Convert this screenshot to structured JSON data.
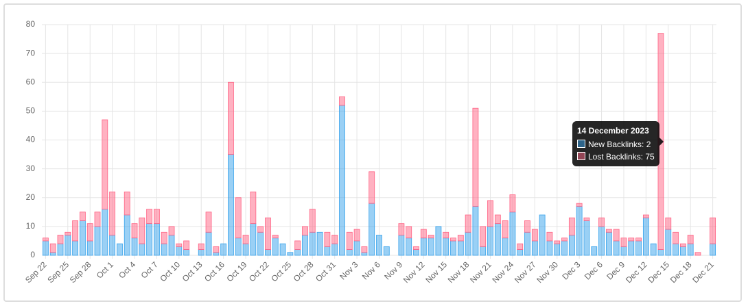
{
  "chart_data": {
    "type": "stacked-bar",
    "categories": [
      "Sep 22",
      null,
      null,
      "Sep 25",
      null,
      null,
      "Sep 28",
      null,
      null,
      "Oct 1",
      null,
      null,
      "Oct 4",
      null,
      null,
      "Oct 7",
      null,
      null,
      "Oct 10",
      null,
      null,
      "Oct 13",
      null,
      null,
      "Oct 16",
      null,
      null,
      "Oct 19",
      null,
      null,
      "Oct 22",
      null,
      null,
      "Oct 25",
      null,
      null,
      "Oct 28",
      null,
      null,
      "Oct 31",
      null,
      null,
      "Nov 3",
      null,
      null,
      "Nov 6",
      null,
      null,
      "Nov 9",
      null,
      null,
      "Nov 12",
      null,
      null,
      "Nov 15",
      null,
      null,
      "Nov 18",
      null,
      null,
      "Nov 21",
      null,
      null,
      "Nov 24",
      null,
      null,
      "Nov 27",
      null,
      null,
      "Nov 30",
      null,
      null,
      "Dec 3",
      null,
      null,
      "Dec 6",
      null,
      null,
      "Dec 9",
      null,
      null,
      "Dec 12",
      null,
      null,
      "Dec 15",
      null,
      null,
      "Dec 18",
      null,
      null,
      "Dec 21"
    ],
    "series": [
      {
        "name": "New Backlinks",
        "color": "#36a2eb",
        "values": [
          5,
          1,
          4,
          7,
          5,
          12,
          5,
          10,
          16,
          7,
          4,
          14,
          6,
          4,
          11,
          11,
          4,
          7,
          3,
          2,
          0,
          2,
          8,
          1,
          4,
          35,
          6,
          4,
          11,
          8,
          2,
          6,
          4,
          1,
          2,
          7,
          8,
          8,
          3,
          4,
          52,
          2,
          5,
          1,
          18,
          7,
          3,
          0,
          7,
          6,
          2,
          6,
          6,
          10,
          6,
          5,
          5,
          8,
          17,
          3,
          10,
          11,
          6,
          15,
          2,
          8,
          5,
          14,
          5,
          4,
          5,
          7,
          17,
          12,
          3,
          10,
          8,
          5,
          3,
          5,
          5,
          13,
          4,
          2,
          9,
          4,
          3,
          4,
          0,
          0,
          4
        ]
      },
      {
        "name": "Lost Backlinks",
        "color": "#ff6384",
        "values": [
          1,
          3,
          3,
          1,
          7,
          3,
          6,
          5,
          31,
          15,
          0,
          8,
          5,
          9,
          5,
          5,
          4,
          3,
          1,
          3,
          0,
          2,
          7,
          2,
          0,
          25,
          14,
          3,
          11,
          2,
          11,
          1,
          0,
          0,
          3,
          3,
          8,
          0,
          5,
          3,
          3,
          6,
          4,
          2,
          11,
          0,
          0,
          0,
          4,
          4,
          1,
          3,
          1,
          0,
          2,
          1,
          2,
          6,
          34,
          7,
          9,
          3,
          6,
          6,
          2,
          4,
          4,
          0,
          3,
          1,
          1,
          6,
          1,
          1,
          0,
          3,
          1,
          4,
          3,
          1,
          1,
          1,
          0,
          75,
          4,
          4,
          1,
          3,
          1,
          0,
          9
        ]
      }
    ],
    "ylim": [
      0,
      80
    ],
    "yticks": [
      0,
      10,
      20,
      30,
      40,
      50,
      60,
      70,
      80
    ],
    "grid": true,
    "tooltip": {
      "title": "14 December 2023",
      "lines": [
        "New Backlinks: 2",
        "Lost Backlinks: 75"
      ]
    }
  }
}
